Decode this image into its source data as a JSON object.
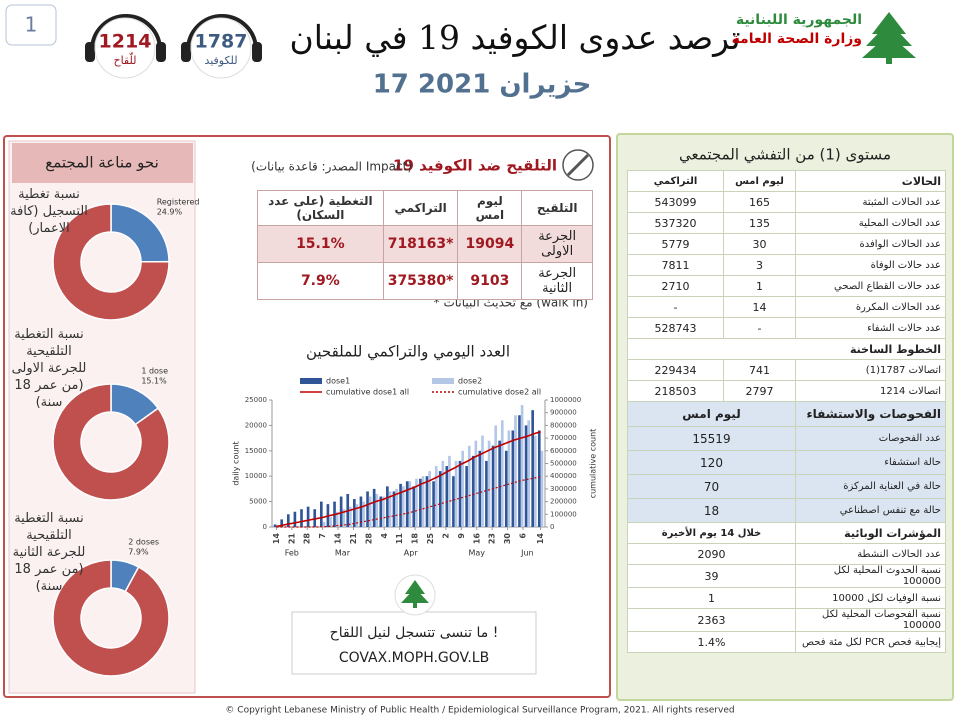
{
  "page_number": "1",
  "hotlines": [
    {
      "number": "1787",
      "label": "للكوفيد"
    },
    {
      "number": "1214",
      "label": "للّقاح"
    }
  ],
  "header": {
    "title": "ترصد عدوى الكوفيد 19 في لبنان",
    "date": "17 حزيران 2021",
    "ministry": [
      "الجمهورية اللبنانية",
      "وزارة الصحة العامة"
    ]
  },
  "immunity": {
    "title": "نحو مناعة المجتمع"
  },
  "vaccination": {
    "title": "التلقيح ضد الكوفيد 19",
    "source": "(المصدر: قاعدة بيانات Impact)",
    "columns": [
      "التلقيح",
      "ليوم امس",
      "التراكمي",
      "التغطية (على عدد السكان)"
    ],
    "rows": [
      [
        "الجرعة الاولى",
        19094,
        "*718163",
        "15.1%"
      ],
      [
        "الجرعة الثانية",
        9103,
        "*375380",
        "7.9%"
      ]
    ],
    "note": "* مع تحديث البيانات (walk in)"
  },
  "chart_data": [
    {
      "type": "bar",
      "title": "العدد اليومي والتراكمي للملقحين",
      "ylabel": "daily count",
      "y2label": "cumulative count",
      "x": [
        0,
        3,
        6,
        9,
        12,
        15,
        18,
        21,
        24,
        27,
        30,
        33,
        36,
        39,
        42,
        45,
        48,
        51,
        54,
        57,
        60,
        63,
        66,
        69,
        72,
        75,
        78,
        81,
        84,
        87,
        90,
        93,
        96,
        99,
        102,
        105,
        108,
        111,
        114,
        117,
        120
      ],
      "xlim": [
        -2,
        122
      ],
      "xticks": [
        {
          "value": 0,
          "label": "14"
        },
        {
          "value": 7,
          "label": "21"
        },
        {
          "value": 14,
          "label": "28"
        },
        {
          "value": 21,
          "label": "7"
        },
        {
          "value": 28,
          "label": "14"
        },
        {
          "value": 35,
          "label": "21"
        },
        {
          "value": 42,
          "label": "28"
        },
        {
          "value": 49,
          "label": "4"
        },
        {
          "value": 56,
          "label": "11"
        },
        {
          "value": 63,
          "label": "18"
        },
        {
          "value": 70,
          "label": "25"
        },
        {
          "value": 77,
          "label": "2"
        },
        {
          "value": 84,
          "label": "9"
        },
        {
          "value": 91,
          "label": "16"
        },
        {
          "value": 98,
          "label": "23"
        },
        {
          "value": 105,
          "label": "30"
        },
        {
          "value": 112,
          "label": "6"
        },
        {
          "value": 120,
          "label": "14"
        }
      ],
      "month_labels": [
        {
          "value": 7,
          "label": "Feb"
        },
        {
          "value": 30,
          "label": "Mar"
        },
        {
          "value": 61,
          "label": "Apr"
        },
        {
          "value": 91,
          "label": "May"
        },
        {
          "value": 114,
          "label": "Jun"
        }
      ],
      "ylim": [
        0,
        25000
      ],
      "yticks": [
        0,
        5000,
        10000,
        15000,
        20000,
        25000
      ],
      "y2lim": [
        0,
        1000000
      ],
      "y2ticks": [
        0,
        100000,
        200000,
        300000,
        400000,
        500000,
        600000,
        700000,
        800000,
        900000,
        1000000
      ],
      "series": [
        {
          "name": "dose1",
          "kind": "bar",
          "color": "#2f5597",
          "values": [
            500,
            1500,
            2500,
            3000,
            3500,
            4000,
            3500,
            5000,
            4500,
            5000,
            6000,
            6500,
            5500,
            6000,
            7000,
            7500,
            6000,
            8000,
            7000,
            8500,
            9000,
            8000,
            9500,
            10000,
            9000,
            11000,
            12000,
            10000,
            13000,
            12000,
            14000,
            15000,
            13000,
            16000,
            17000,
            15000,
            19000,
            22000,
            20000,
            23000,
            19000
          ]
        },
        {
          "name": "dose2",
          "kind": "bar",
          "color": "#b4c7e7",
          "values": [
            0,
            0,
            0,
            0,
            0,
            0,
            0,
            1000,
            2000,
            3000,
            3500,
            4000,
            4500,
            5000,
            6000,
            6500,
            6000,
            7000,
            7500,
            8000,
            9000,
            9500,
            10000,
            11000,
            12000,
            13000,
            14000,
            13000,
            15000,
            16000,
            17000,
            18000,
            17000,
            20000,
            21000,
            19000,
            22000,
            24000,
            21000,
            18000,
            15000
          ]
        },
        {
          "name": "cumulative dose1 all",
          "kind": "line",
          "axis": "y2",
          "color": "#c00000",
          "values": [
            5000,
            15000,
            25000,
            35000,
            45000,
            55000,
            65000,
            75000,
            90000,
            100000,
            115000,
            130000,
            145000,
            160000,
            180000,
            200000,
            215000,
            235000,
            255000,
            275000,
            295000,
            315000,
            340000,
            360000,
            385000,
            410000,
            440000,
            465000,
            495000,
            520000,
            550000,
            575000,
            600000,
            625000,
            645000,
            665000,
            685000,
            700000,
            715000,
            735000,
            750000
          ]
        },
        {
          "name": "cumulative dose2 all",
          "kind": "line",
          "axis": "y2",
          "color": "#c00000",
          "dash": "dotted",
          "values": [
            0,
            0,
            0,
            0,
            0,
            0,
            0,
            2000,
            5000,
            10000,
            15000,
            20000,
            30000,
            40000,
            50000,
            60000,
            70000,
            80000,
            90000,
            100000,
            110000,
            125000,
            140000,
            155000,
            170000,
            185000,
            200000,
            215000,
            230000,
            245000,
            260000,
            275000,
            290000,
            305000,
            320000,
            335000,
            350000,
            365000,
            375000,
            385000,
            395000
          ]
        }
      ]
    },
    {
      "type": "pie",
      "title": "نسبة تغطية التسجيل (كافة الاعمار)",
      "categories": [
        "Registered",
        null
      ],
      "values": [
        24.9,
        75.1
      ],
      "value_labels": [
        "24.9%",
        null
      ],
      "colors": [
        "#4f81bd",
        "#c0504d"
      ]
    },
    {
      "type": "pie",
      "title": "نسبة التغطية التلقيحية للجرعة الاولى (من عمر 18 سنة)",
      "categories": [
        "1 dose",
        null
      ],
      "values": [
        15.1,
        84.9
      ],
      "value_labels": [
        "15.1%",
        null
      ],
      "colors": [
        "#4f81bd",
        "#c0504d"
      ]
    },
    {
      "type": "pie",
      "title": "نسبة التغطية التلقيحية للجرعة الثانية (من عمر 18 سنة)",
      "categories": [
        "2 doses",
        null
      ],
      "values": [
        7.9,
        92.1
      ],
      "value_labels": [
        "7.9%",
        null
      ],
      "colors": [
        "#4f81bd",
        "#c0504d"
      ]
    }
  ],
  "promo": {
    "text": "ما تنسى تتسجل لنيل اللقاح !",
    "url": "COVAX.MOPH.GOV.LB"
  },
  "outbreak": {
    "title": "مستوى (1) من التفشي المجتمعي",
    "sections": [
      {
        "style": "plain",
        "header": [
          "الحالات",
          "ليوم امس",
          "التراكمي"
        ],
        "rows": [
          [
            "عدد الحالات المثبتة",
            165,
            543099
          ],
          [
            "عدد الحالات المحلية",
            135,
            537320
          ],
          [
            "عدد الحالات الوافدة",
            30,
            5779
          ],
          [
            "عدد حالات الوفاة",
            3,
            7811
          ],
          [
            "عدد حالات القطاع الصحي",
            1,
            2710
          ],
          [
            "عدد الحالات المكررة",
            14,
            "-"
          ],
          [
            "عدد حالات الشفاء",
            "-",
            528743
          ]
        ]
      },
      {
        "style": "plain",
        "header": [
          "الخطوط الساخنة"
        ],
        "rows": [
          [
            "اتصالات 1787(1)",
            741,
            229434
          ],
          [
            "اتصالات 1214",
            2797,
            218503
          ]
        ]
      },
      {
        "style": "blue",
        "header": [
          "الفحوصات والاستشفاء",
          "ليوم امس"
        ],
        "rows": [
          [
            "عدد الفحوصات",
            15519
          ],
          [
            "حالة استشفاء",
            120
          ],
          [
            "حالة في العناية المركزة",
            70
          ],
          [
            "حالة مع تنفس اصطناعي",
            18
          ]
        ]
      },
      {
        "style": "plain",
        "header": [
          "المؤشرات الوبائية",
          "خلال 14 يوم الأخيرة"
        ],
        "rows": [
          [
            "عدد الحالات النشطة",
            2090
          ],
          [
            "نسبة الحدوث المحلية لكل 100000",
            39
          ],
          [
            "نسبة الوفيات لكل 10000",
            1
          ],
          [
            "نسبة الفحوصات المحلية لكل 100000",
            2363
          ],
          [
            "إيجابية فحص PCR لكل مئة فحص",
            "1.4%"
          ]
        ]
      }
    ]
  },
  "footer": "© Copyright Lebanese Ministry of Public Health / Epidemiological Surveillance Program, 2021. All rights reserved"
}
